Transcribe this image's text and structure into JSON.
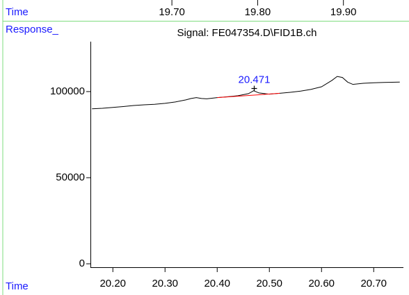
{
  "chart_data": {
    "type": "line",
    "title": "Signal: FE047354.D\\FID1B.ch",
    "ylabel": "Response_",
    "xlabel": "Time",
    "xlim": [
      20.157,
      20.757
    ],
    "xticks": [
      {
        "value": 20.2,
        "label": "20.20"
      },
      {
        "value": 20.3,
        "label": "20.30"
      },
      {
        "value": 20.4,
        "label": "20.40"
      },
      {
        "value": 20.5,
        "label": "20.50"
      },
      {
        "value": 20.6,
        "label": "20.60"
      },
      {
        "value": 20.7,
        "label": "20.70"
      }
    ],
    "ylim": [
      -2000,
      129000
    ],
    "yticks": [
      0,
      50000,
      100000
    ],
    "color": "#000000",
    "x": [
      20.16,
      20.18,
      20.2,
      20.22,
      20.24,
      20.26,
      20.28,
      20.3,
      20.32,
      20.34,
      20.35,
      20.36,
      20.37,
      20.38,
      20.4,
      20.42,
      20.44,
      20.46,
      20.47,
      20.48,
      20.5,
      20.52,
      20.54,
      20.56,
      20.58,
      20.6,
      20.62,
      20.63,
      20.64,
      20.65,
      20.66,
      20.68,
      20.7,
      20.72,
      20.75
    ],
    "values": [
      90000,
      90300,
      90800,
      91300,
      91900,
      92300,
      92600,
      93200,
      94000,
      95200,
      96000,
      96500,
      96000,
      95800,
      96500,
      97000,
      97600,
      98800,
      100500,
      99200,
      98500,
      99000,
      99600,
      100300,
      101300,
      102800,
      106500,
      108800,
      108200,
      105500,
      104200,
      104800,
      105100,
      105300,
      105500
    ],
    "baseline": {
      "x": [
        20.4,
        20.52
      ],
      "values": [
        96500,
        99000
      ],
      "color": "#ff0000"
    },
    "annotations": [
      {
        "x": 20.471,
        "value": 101800,
        "label": "20.471"
      }
    ],
    "top_axis": {
      "label": "Time",
      "xlim": [
        19.605,
        19.97
      ],
      "xticks": [
        {
          "value": 19.7,
          "label": "19.70"
        },
        {
          "value": 19.8,
          "label": "19.80"
        },
        {
          "value": 19.9,
          "label": "19.90"
        }
      ]
    }
  }
}
